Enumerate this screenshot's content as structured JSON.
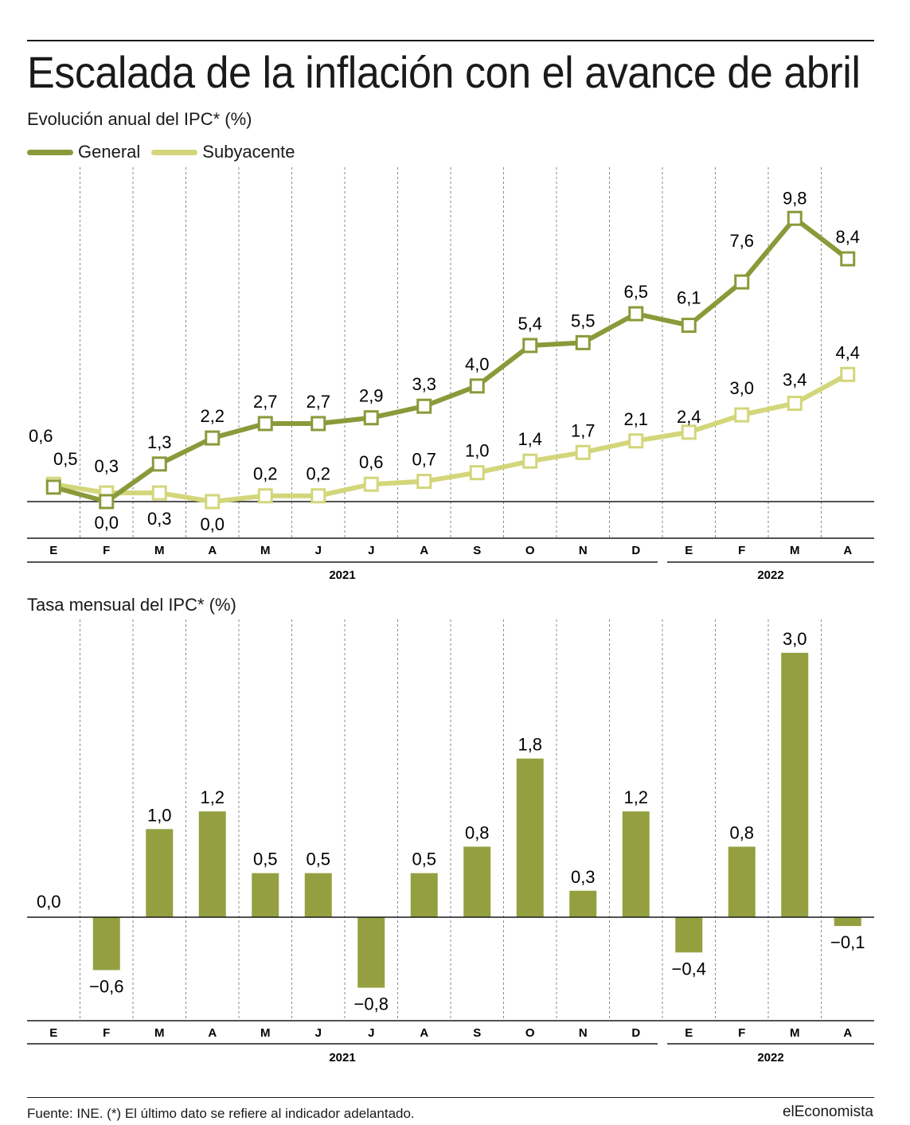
{
  "title": "Escalada de la inflación con el avance de abril",
  "brand": "elEconomista",
  "source": "Fuente: INE. (*)  El último dato se refiere al indicador adelantado.",
  "colors": {
    "general": "#8a9a3a",
    "subyacente": "#d3d67a",
    "bar": "#94a03f",
    "grid": "#8a8a8a",
    "ink": "#1a1a1a"
  },
  "chart_data": [
    {
      "type": "line",
      "subtitle": "Evolución anual del IPC* (%)",
      "categories": [
        "E",
        "F",
        "M",
        "A",
        "M",
        "J",
        "J",
        "A",
        "S",
        "O",
        "N",
        "D",
        "E",
        "F",
        "M",
        "A"
      ],
      "years": [
        {
          "label": "2021",
          "span": [
            0,
            11
          ]
        },
        {
          "label": "2022",
          "span": [
            12,
            15
          ]
        }
      ],
      "ylim": [
        -1.5,
        10.5
      ],
      "series": [
        {
          "name": "General",
          "values": [
            0.5,
            0.0,
            1.3,
            2.2,
            2.7,
            2.7,
            2.9,
            3.3,
            4.0,
            5.4,
            5.5,
            6.5,
            6.1,
            7.6,
            9.8,
            8.4
          ]
        },
        {
          "name": "Subyacente",
          "values": [
            0.6,
            0.3,
            0.3,
            0.0,
            0.2,
            0.2,
            0.6,
            0.7,
            1.0,
            1.4,
            1.7,
            2.1,
            2.4,
            3.0,
            3.4,
            4.4
          ]
        }
      ],
      "labels_general": [
        "0,5",
        "0,0",
        "1,3",
        "2,2",
        "2,7",
        "2,7",
        "2,9",
        "3,3",
        "4,0",
        "5,4",
        "5,5",
        "6,5",
        "6,1",
        "7,6",
        "9,8",
        "8,4"
      ],
      "labels_subyacente": [
        "0,6",
        "0,3",
        "0,3",
        "0,0",
        "0,2",
        "0,2",
        "0,6",
        "0,7",
        "1,0",
        "1,4",
        "1,7",
        "2,1",
        "2,4",
        "3,0",
        "3,4",
        "4,4"
      ]
    },
    {
      "type": "bar",
      "subtitle": "Tasa mensual del IPC* (%)",
      "categories": [
        "E",
        "F",
        "M",
        "A",
        "M",
        "J",
        "J",
        "A",
        "S",
        "O",
        "N",
        "D",
        "E",
        "F",
        "M",
        "A"
      ],
      "years": [
        {
          "label": "2021",
          "span": [
            0,
            11
          ]
        },
        {
          "label": "2022",
          "span": [
            12,
            15
          ]
        }
      ],
      "ylim": [
        -1.2,
        3.4
      ],
      "values": [
        0.0,
        -0.6,
        1.0,
        1.2,
        0.5,
        0.5,
        -0.8,
        0.5,
        0.8,
        1.8,
        0.3,
        1.2,
        -0.4,
        0.8,
        3.0,
        -0.1
      ],
      "value_labels": [
        "0,0",
        "−0,6",
        "1,0",
        "1,2",
        "0,5",
        "0,5",
        "−0,8",
        "0,5",
        "0,8",
        "1,8",
        "0,3",
        "1,2",
        "−0,4",
        "0,8",
        "3,0",
        "−0,1"
      ]
    }
  ]
}
